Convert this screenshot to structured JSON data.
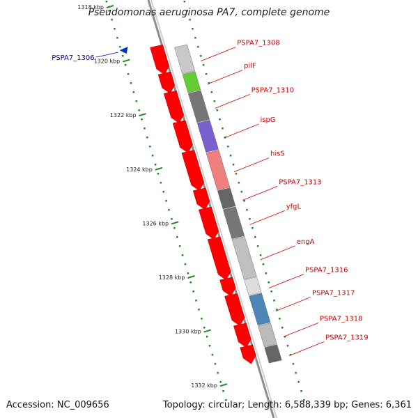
{
  "title": "Pseudomonas aeruginosa PA7, complete genome",
  "footer": {
    "accession": "Accession: NC_009656",
    "stats": "Topology: circular; Length: 6,588,339 bp; Genes: 6,361"
  },
  "colors": {
    "cds": "#ff0000",
    "axis_tick": "#1f8a1f",
    "backbone": "#8c8c8c",
    "gene_label": "#cc0000",
    "minus_label": "#0000aa"
  },
  "kbp_ticks": [
    {
      "kbp": 1318,
      "label": "1318 kbp"
    },
    {
      "kbp": 1320,
      "label": "1320 kbp"
    },
    {
      "kbp": 1322,
      "label": "1322 kbp"
    },
    {
      "kbp": 1324,
      "label": "1324 kbp"
    },
    {
      "kbp": 1326,
      "label": "1326 kbp"
    },
    {
      "kbp": 1328,
      "label": "1328 kbp"
    },
    {
      "kbp": 1330,
      "label": "1330 kbp"
    },
    {
      "kbp": 1332,
      "label": "1332 kbp"
    }
  ],
  "genes": [
    {
      "name": "PSPA7_1306",
      "strand": "minus",
      "kbp_start": 1319.6,
      "kbp_end": 1319.75,
      "cog_color": "#0033cc"
    },
    {
      "name": "PSPA7_1308",
      "strand": "plus",
      "kbp_start": 1319.5,
      "kbp_end": 1320.5,
      "cog_color": "#c8c8c8"
    },
    {
      "name": "pilF",
      "strand": "plus",
      "kbp_start": 1320.5,
      "kbp_end": 1321.2,
      "cog_color": "#66cc33"
    },
    {
      "name": "PSPA7_1310",
      "strand": "plus",
      "kbp_start": 1321.2,
      "kbp_end": 1322.3,
      "cog_color": "#777777"
    },
    {
      "name": "ispG",
      "strand": "plus",
      "kbp_start": 1322.3,
      "kbp_end": 1323.4,
      "cog_color": "#7a5fd0"
    },
    {
      "name": "hisS",
      "strand": "plus",
      "kbp_start": 1323.4,
      "kbp_end": 1324.8,
      "cog_color": "#f08080"
    },
    {
      "name": "PSPA7_1313",
      "strand": "plus",
      "kbp_start": 1324.8,
      "kbp_end": 1325.5,
      "cog_color": "#666666"
    },
    {
      "name": "yfgL",
      "strand": "plus",
      "kbp_start": 1325.5,
      "kbp_end": 1326.6,
      "cog_color": "#777777"
    },
    {
      "name": "engA",
      "strand": "plus",
      "kbp_start": 1326.6,
      "kbp_end": 1328.1,
      "cog_color": "#c0c0c0"
    },
    {
      "name": "PSPA7_1316",
      "strand": "plus",
      "kbp_start": 1328.1,
      "kbp_end": 1328.7,
      "cog_color": "#dddddd"
    },
    {
      "name": "PSPA7_1317",
      "strand": "plus",
      "kbp_start": 1328.7,
      "kbp_end": 1329.8,
      "cog_color": "#4a86b8"
    },
    {
      "name": "PSPA7_1318",
      "strand": "plus",
      "kbp_start": 1329.8,
      "kbp_end": 1330.6,
      "cog_color": "#bbbbbb"
    },
    {
      "name": "PSPA7_1319",
      "strand": "plus",
      "kbp_start": 1330.6,
      "kbp_end": 1331.2,
      "cog_color": "#666666"
    }
  ]
}
